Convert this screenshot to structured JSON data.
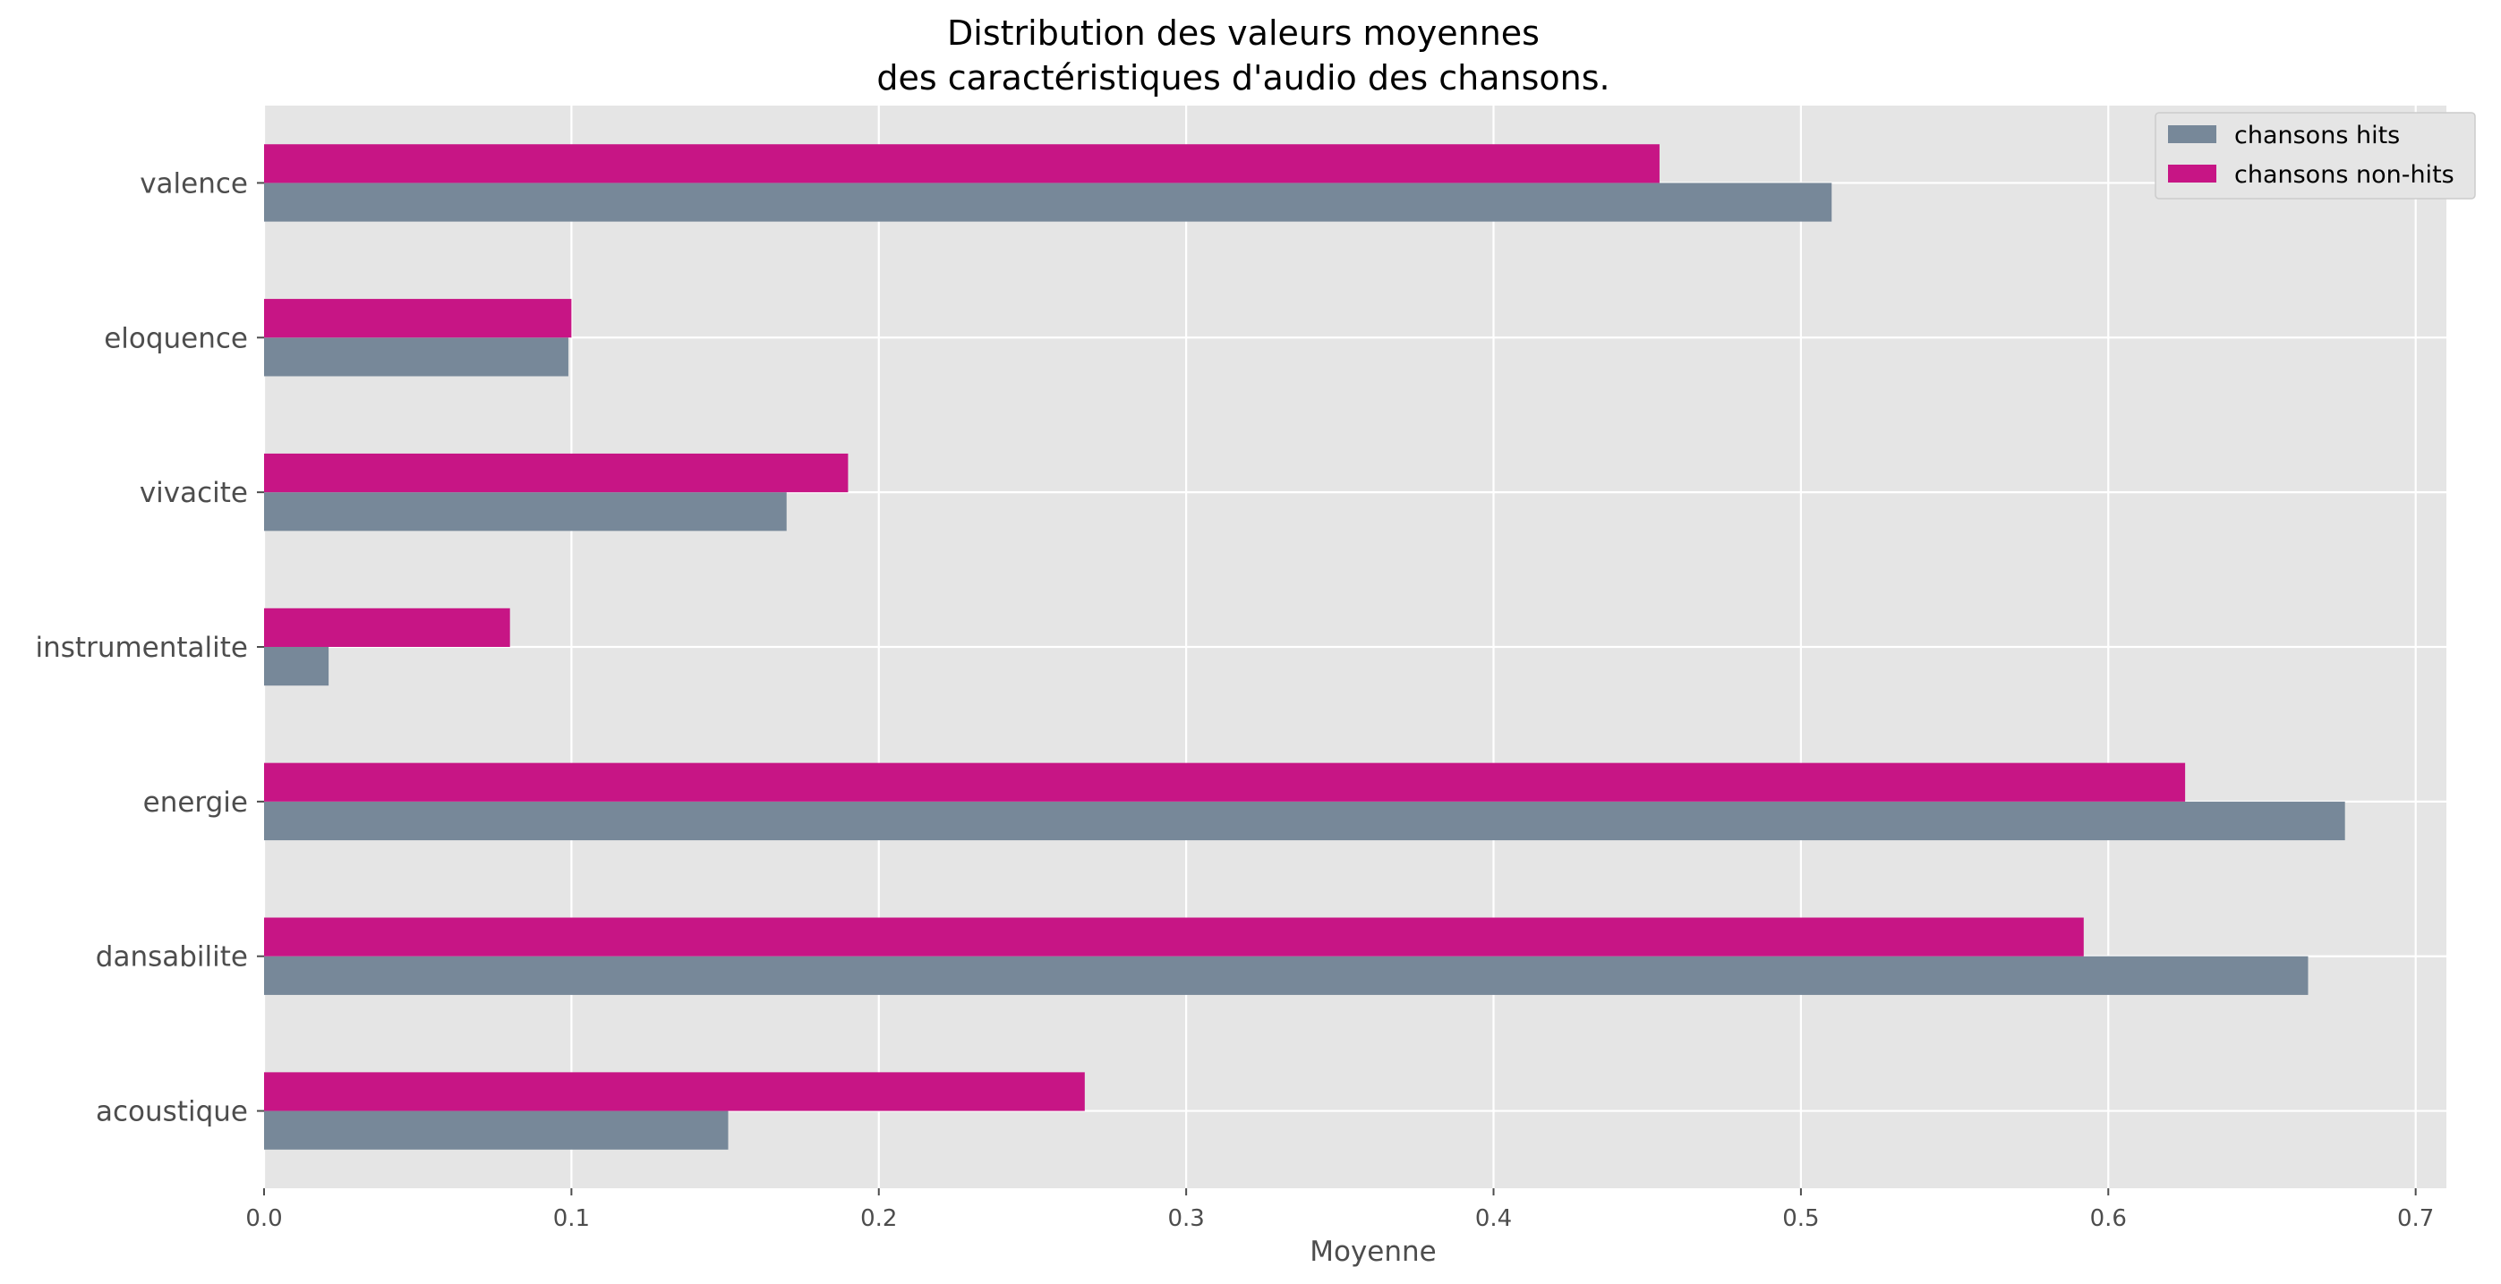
{
  "chart_data": {
    "type": "bar",
    "orientation": "horizontal",
    "title_line1": "Distribution des valeurs moyennes",
    "title_line2": "des caractéristiques d'audio des chansons.",
    "xlabel": "Moyenne",
    "ylabel": "",
    "xlim": [
      0,
      0.71
    ],
    "x_ticks": [
      "0.0",
      "0.1",
      "0.2",
      "0.3",
      "0.4",
      "0.5",
      "0.6",
      "0.7"
    ],
    "grid": true,
    "legend_position": "top-right",
    "categories": [
      "acoustique",
      "dansabilite",
      "energie",
      "instrumentalite",
      "vivacite",
      "eloquence",
      "valence"
    ],
    "series": [
      {
        "name": "chansons hits",
        "color": "#778899",
        "values": [
          0.151,
          0.665,
          0.677,
          0.021,
          0.17,
          0.099,
          0.51
        ]
      },
      {
        "name": "chansons non-hits",
        "color": "#c71585",
        "values": [
          0.267,
          0.592,
          0.625,
          0.08,
          0.19,
          0.1,
          0.454
        ]
      }
    ]
  }
}
